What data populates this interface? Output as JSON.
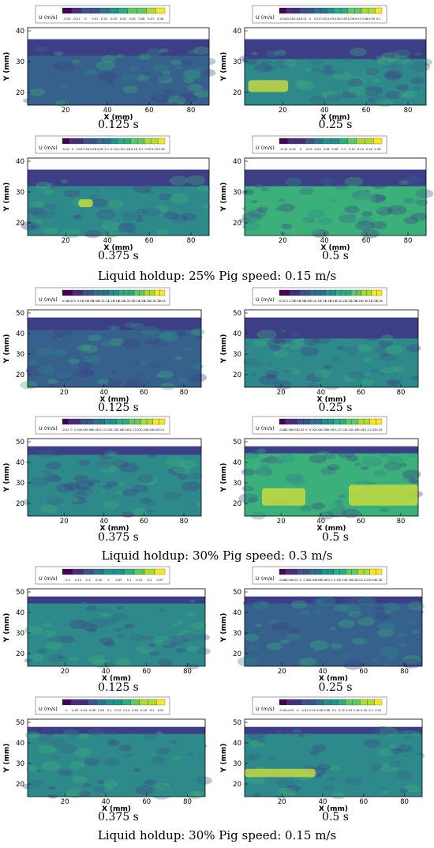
{
  "groups": [
    {
      "caption": "Liquid holdup: 25% Pig speed: 0.15 m/s",
      "panels": [
        {
          "time": "0.125 s",
          "legend_title": "U (m/s)",
          "ticks": [
            "-0.02",
            "-0.01",
            "0",
            "0.01",
            "0.02",
            "0.03",
            "0.04",
            "0.05",
            "0.06",
            "0.07",
            "0.08"
          ],
          "y_ticks": [
            "40",
            "30",
            "20"
          ],
          "x_ticks": [
            "20",
            "40",
            "60",
            "80"
          ],
          "x_label": "X (mm)",
          "y_label": "Y (mm)"
        },
        {
          "time": "0.25 s",
          "legend_title": "U (m/s)",
          "ticks": [
            "-0.04",
            "-0.03",
            "-0.02",
            "-0.01",
            "0",
            "0.01",
            "0.02",
            "0.03",
            "0.04",
            "0.05",
            "0.06",
            "0.07",
            "0.08",
            "0.09",
            "0.1"
          ],
          "y_ticks": [
            "40",
            "30",
            "20"
          ],
          "x_ticks": [
            "20",
            "40",
            "60",
            "80"
          ],
          "x_label": "X (mm)",
          "y_label": "Y (mm)"
        },
        {
          "time": "0.375 s",
          "legend_title": "U (m/s)",
          "ticks": [
            "-0.02",
            "0",
            "0.02",
            "0.04",
            "0.06",
            "0.08",
            "0.1",
            "0.12",
            "0.14",
            "0.16",
            "0.18",
            "0.2",
            "0.22",
            "0.24",
            "0.26"
          ],
          "y_ticks": [
            "40",
            "30",
            "20"
          ],
          "x_ticks": [
            "20",
            "40",
            "60",
            "80"
          ],
          "x_label": "X (mm)",
          "y_label": "Y (mm)"
        },
        {
          "time": "0.5 s",
          "legend_title": "U (m/s)",
          "ticks": [
            "-0.04",
            "-0.02",
            "0",
            "0.02",
            "0.04",
            "0.06",
            "0.08",
            "0.1",
            "0.12",
            "0.14",
            "0.16",
            "0.18"
          ],
          "y_ticks": [
            "40",
            "30",
            "20"
          ],
          "x_ticks": [
            "20",
            "40",
            "60",
            "80"
          ],
          "x_label": "X (mm)",
          "y_label": "Y (mm)"
        }
      ]
    },
    {
      "caption": "Liquid holdup: 30% Pig speed: 0.3 m/s",
      "panels": [
        {
          "time": "0.125 s",
          "legend_title": "U (m/s)",
          "ticks": [
            "-0.04",
            "-0.02",
            "0",
            "0.02",
            "0.04",
            "0.06",
            "0.08",
            "0.1",
            "0.12",
            "0.14",
            "0.16",
            "0.18",
            "0.2",
            "0.22",
            "0.24",
            "0.26",
            "0.28",
            "0.3",
            "0.32",
            "0.34"
          ],
          "y_ticks": [
            "50",
            "40",
            "30",
            "20"
          ],
          "x_ticks": [
            "20",
            "40",
            "60",
            "80"
          ],
          "x_label": "X (mm)",
          "y_label": "Y (mm)"
        },
        {
          "time": "0.25 s",
          "legend_title": "U (m/s)",
          "ticks": [
            "-0.02",
            "0",
            "0.02",
            "0.04",
            "0.06",
            "0.08",
            "0.1",
            "0.12",
            "0.14",
            "0.16",
            "0.18",
            "0.2",
            "0.22",
            "0.24",
            "0.26",
            "0.28",
            "0.3",
            "0.32",
            "0.34",
            "0.36"
          ],
          "y_ticks": [
            "50",
            "40",
            "30",
            "20"
          ],
          "x_ticks": [
            "20",
            "40",
            "60",
            "80"
          ],
          "x_label": "X (mm)",
          "y_label": "Y (mm)"
        },
        {
          "time": "0.375 s",
          "legend_title": "U (m/s)",
          "ticks": [
            "-0.02",
            "0",
            "0.02",
            "0.04",
            "0.06",
            "0.08",
            "0.1",
            "0.12",
            "0.14",
            "0.16",
            "0.18",
            "0.2",
            "0.22",
            "0.24",
            "0.26",
            "0.28",
            "0.3"
          ],
          "y_ticks": [
            "50",
            "40",
            "30",
            "20"
          ],
          "x_ticks": [
            "20",
            "40",
            "60",
            "80"
          ],
          "x_label": "X (mm)",
          "y_label": "Y (mm)"
        },
        {
          "time": "0.5 s",
          "legend_title": "U (m/s)",
          "ticks": [
            "-0.08",
            "-0.06",
            "-0.04",
            "-0.02",
            "0",
            "0.02",
            "0.04",
            "0.06",
            "0.08",
            "0.1",
            "0.12",
            "0.14",
            "0.16",
            "0.18",
            "0.2",
            "0.22",
            "0.24"
          ],
          "y_ticks": [
            "50",
            "40",
            "30",
            "20"
          ],
          "x_ticks": [
            "20",
            "40",
            "60",
            "80"
          ],
          "x_label": "X (mm)",
          "y_label": "Y (mm)"
        }
      ]
    },
    {
      "caption": "Liquid holdup: 30% Pig speed: 0.15 m/s",
      "panels": [
        {
          "time": "0.125 s",
          "legend_title": "U (m/s)",
          "ticks": [
            "-0.2",
            "-0.15",
            "-0.1",
            "-0.05",
            "0",
            "0.05",
            "0.1",
            "0.15",
            "0.2",
            "0.25"
          ],
          "y_ticks": [
            "50",
            "40",
            "30",
            "20"
          ],
          "x_ticks": [
            "20",
            "40",
            "60",
            "80"
          ],
          "x_label": "X (mm)",
          "y_label": "Y (mm)"
        },
        {
          "time": "0.25 s",
          "legend_title": "U (m/s)",
          "ticks": [
            "-0.06",
            "-0.04",
            "-0.02",
            "0",
            "0.02",
            "0.04",
            "0.06",
            "0.08",
            "0.1",
            "0.12",
            "0.14",
            "0.16",
            "0.18",
            "0.2",
            "0.22",
            "0.24",
            "0.26"
          ],
          "y_ticks": [
            "50",
            "40",
            "30",
            "20"
          ],
          "x_ticks": [
            "20",
            "40",
            "60",
            "80"
          ],
          "x_label": "X (mm)",
          "y_label": "Y (mm)"
        },
        {
          "time": "0.375 s",
          "legend_title": "U (m/s)",
          "ticks": [
            "0",
            "0.02",
            "0.04",
            "0.06",
            "0.08",
            "0.1",
            "0.12",
            "0.14",
            "0.16",
            "0.18",
            "0.2",
            "0.22"
          ],
          "y_ticks": [
            "50",
            "40",
            "30",
            "20"
          ],
          "x_ticks": [
            "20",
            "40",
            "60",
            "80"
          ],
          "x_label": "X (mm)",
          "y_label": "Y (mm)"
        },
        {
          "time": "0.5 s",
          "legend_title": "U (m/s)",
          "ticks": [
            "-0.04",
            "-0.02",
            "0",
            "0.02",
            "0.04",
            "0.06",
            "0.08",
            "0.1",
            "0.12",
            "0.14",
            "0.16",
            "0.18",
            "0.2",
            "0.22"
          ],
          "y_ticks": [
            "50",
            "40",
            "30",
            "20"
          ],
          "x_ticks": [
            "20",
            "40",
            "60",
            "80"
          ],
          "x_label": "X (mm)",
          "y_label": "Y (mm)"
        }
      ]
    }
  ],
  "colors": {
    "viridis": [
      "#440154",
      "#472d7b",
      "#3b528b",
      "#2c728e",
      "#21918c",
      "#28ae80",
      "#5ec962",
      "#addc30",
      "#fde725"
    ],
    "field_dark": "#3d3f86",
    "field_mid": "#36618d",
    "field_teal": "#2e8a8a",
    "field_green": "#3bb07a",
    "field_yellow": "#d8e13a"
  }
}
